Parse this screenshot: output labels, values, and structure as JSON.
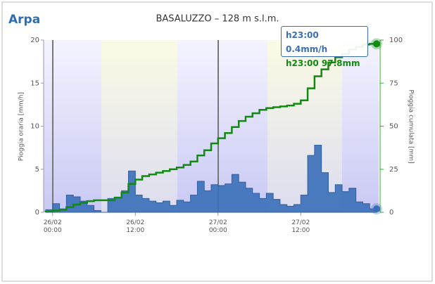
{
  "logo": "Arpa",
  "chart_data": {
    "type": "step",
    "title": "BASALUZZO – 128 m s.l.m.",
    "y_label": "Pioggia oraria [mm/h]",
    "y2_label": "Pioggia cumulata [mm]",
    "x": [
      -1,
      0,
      1,
      2,
      3,
      4,
      5,
      6,
      7,
      8,
      9,
      10,
      11,
      12,
      13,
      14,
      15,
      16,
      17,
      18,
      19,
      20,
      21,
      22,
      23,
      24,
      25,
      26,
      27,
      28,
      29,
      30,
      31,
      32,
      33,
      34,
      35,
      36,
      37,
      38,
      39,
      40,
      41,
      42,
      43,
      44,
      45,
      46,
      47
    ],
    "xlim": [
      -1,
      47
    ],
    "xticks": [
      {
        "value": 0,
        "label": "26/02\n00:00"
      },
      {
        "value": 12,
        "label": "26/02\n12:00"
      },
      {
        "value": 24,
        "label": "27/02\n00:00"
      },
      {
        "value": 36,
        "label": "27/02\n12:00"
      }
    ],
    "ylim": [
      0,
      20
    ],
    "yticks": [
      0,
      5,
      10,
      15,
      20
    ],
    "y2lim": [
      0,
      100
    ],
    "y2ticks": [
      0,
      25,
      50,
      75,
      100
    ],
    "series": [
      {
        "name": "Pioggia oraria",
        "color": "#3a6fb8",
        "values": [
          0,
          0.3,
          1,
          0.4,
          2,
          1.8,
          1.3,
          0.8,
          0.2,
          0,
          1.6,
          1.7,
          2.5,
          4.8,
          2,
          1.6,
          1.3,
          1.1,
          1.3,
          0.8,
          1.4,
          1.2,
          2,
          3.6,
          2.5,
          3.2,
          3.1,
          3.3,
          4.4,
          3.5,
          2.8,
          2.2,
          1.6,
          2.2,
          1.5,
          0.9,
          0.7,
          0.9,
          2,
          6.6,
          7.8,
          4.6,
          2.3,
          3.2,
          2.4,
          2.8,
          1.2,
          1,
          0.4
        ]
      },
      {
        "name": "Pioggia cumulata",
        "color": "#108a10",
        "axis": "y2",
        "values": [
          0,
          0.5,
          1,
          1.5,
          3,
          4.5,
          5.5,
          6.5,
          7,
          7,
          7,
          8.5,
          11.5,
          16.5,
          19,
          21,
          22,
          23,
          24,
          25,
          26,
          27.5,
          29.5,
          33,
          36,
          40,
          43,
          46,
          49.5,
          53,
          55.5,
          57.5,
          59.5,
          60.5,
          61,
          61.5,
          62,
          63,
          65,
          72,
          79,
          83,
          87,
          90,
          92,
          94.5,
          96,
          97.4,
          97.8
        ]
      }
    ],
    "tooltip": [
      "h23:00 0.4mm/h",
      "h23:00 97.8mm"
    ]
  }
}
